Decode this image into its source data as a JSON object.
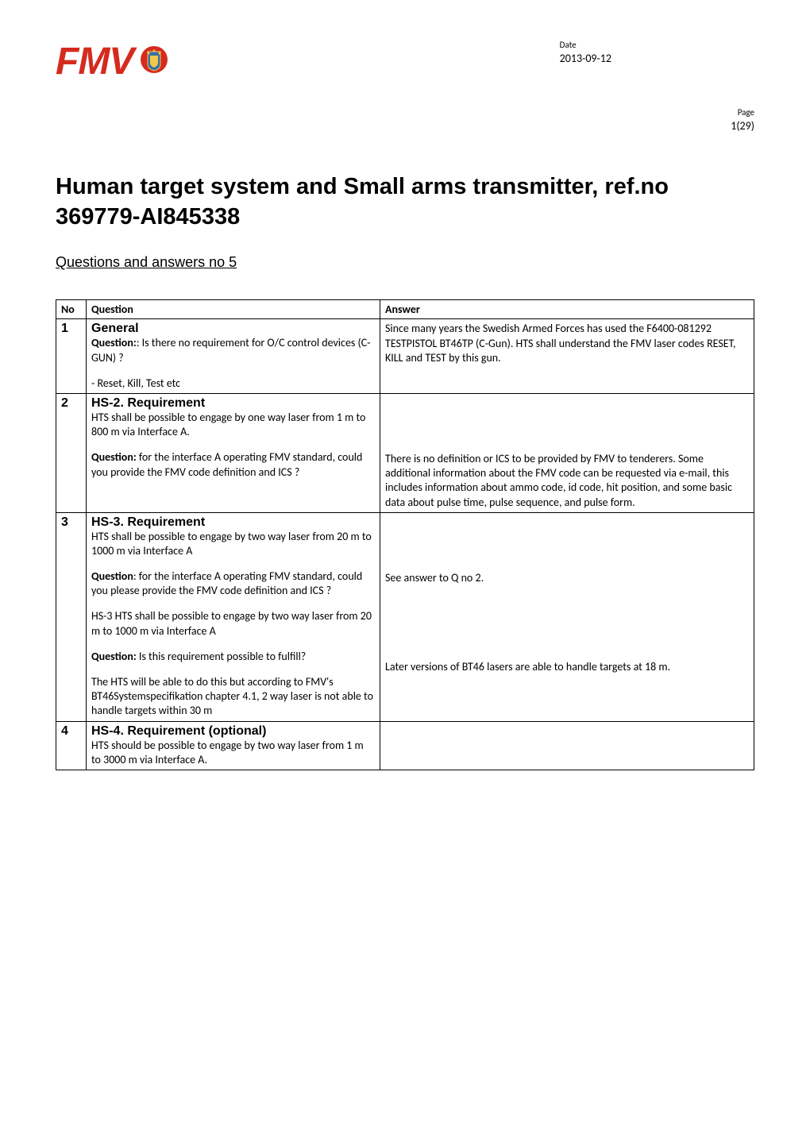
{
  "header": {
    "logo_text": "FMV",
    "logo_color": "#d52b1e",
    "date_label": "Date",
    "date_value": "2013-09-12",
    "page_label": "Page",
    "page_value": "1(29)"
  },
  "title": "Human target system and Small arms transmitter, ref.no 369779-AI845338",
  "subtitle": "Questions and answers no 5",
  "table": {
    "headers": {
      "no": "No",
      "question": "Question",
      "answer": "Answer"
    },
    "rows": [
      {
        "no": "1",
        "heading": "General",
        "question_paras": [
          {
            "label": "Question:",
            "text": ": Is there no requirement for O/C control devices (C-GUN) ?"
          },
          {
            "text": "- Reset, Kill, Test etc"
          }
        ],
        "answer_paras": [
          {
            "text": "Since many years the Swedish Armed Forces has used the F6400-081292 TESTPISTOL BT46TP (C-Gun). HTS shall understand the FMV laser codes RESET, KILL and TEST by this gun."
          }
        ]
      },
      {
        "no": "2",
        "heading": "HS-2. Requirement",
        "question_paras": [
          {
            "text": "HTS shall be possible to engage by one way laser from 1 m to 800 m via Interface A."
          },
          {
            "label": "Question:",
            "text": " for the interface A operating FMV standard, could you provide the FMV code definition and ICS ?"
          }
        ],
        "answer_paras": [
          {
            "text": "There is no definition or ICS to be provided by FMV to tenderers. Some additional information about the FMV code can be requested via e-mail, this includes information about ammo code, id code, hit position, and some basic data about pulse time, pulse sequence, and pulse form."
          }
        ]
      },
      {
        "no": "3",
        "heading": "HS-3. Requirement",
        "question_paras": [
          {
            "text": "HTS shall be possible to engage by two way laser from 20 m to 1000 m via Interface A"
          },
          {
            "label": "Question",
            "text": ": for the interface A operating FMV standard, could you please provide the FMV code definition and ICS ?"
          },
          {
            "text": "HS-3 HTS shall be possible to engage by two way laser from 20 m to 1000 m via Interface A"
          },
          {
            "label": "Question:",
            "text": " Is this requirement possible to fulfill?"
          },
          {
            "text": "The HTS will be able to do this but according to FMV's BT46Systemspecifikation chapter 4.1, 2 way laser is not able to handle targets within 30 m"
          }
        ],
        "answer_paras": [
          {
            "text": "See answer to Q no 2."
          },
          {
            "text": "Later versions of BT46 lasers are able to handle targets at 18 m."
          }
        ]
      },
      {
        "no": "4",
        "heading": "HS-4. Requirement (optional)",
        "question_paras": [
          {
            "text": "HTS should be possible to engage by two way laser from 1 m to 3000 m via Interface A."
          }
        ],
        "answer_paras": []
      }
    ]
  },
  "styling": {
    "logo_fill": "#d52b1e",
    "crest_blue": "#3a6fa7",
    "crest_gold": "#f0c84a",
    "page_bg": "#ffffff",
    "border_color": "#000000",
    "body_fontsize": 14,
    "title_fontsize": 29,
    "subtitle_fontsize": 18,
    "heading_fontsize": 16
  }
}
